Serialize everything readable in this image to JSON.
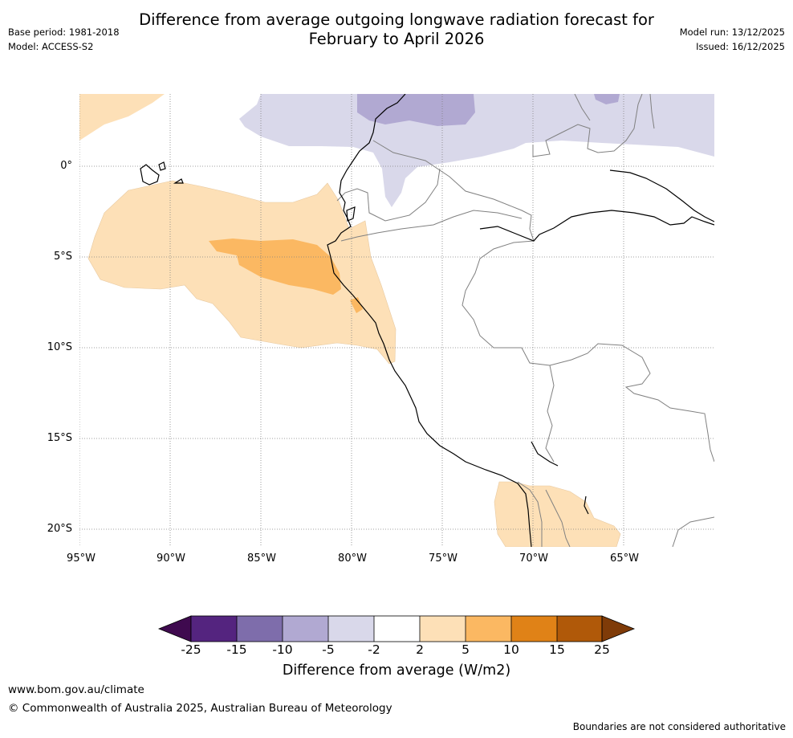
{
  "title": {
    "line1": "Difference from average outgoing longwave radiation forecast for",
    "line2": "February to April 2026"
  },
  "meta": {
    "base_period": "Base period: 1981-2018",
    "model": "Model: ACCESS-S2",
    "model_run": "Model run: 13/12/2025",
    "issued": "Issued: 16/12/2025"
  },
  "map": {
    "lat_labels": [
      "0°",
      "5°S",
      "10°S",
      "15°S",
      "20°S"
    ],
    "lon_labels": [
      "95°W",
      "90°W",
      "85°W",
      "80°W",
      "75°W",
      "70°W",
      "65°W"
    ]
  },
  "colorbar": {
    "ticks": [
      "-25",
      "-15",
      "-10",
      "-5",
      "-2",
      "2",
      "5",
      "10",
      "15",
      "25"
    ],
    "colors": [
      "#3f0a4f",
      "#54247f",
      "#7e6dab",
      "#b1a9d2",
      "#d9d8ea",
      "#ffffff",
      "#fde0b7",
      "#fbb862",
      "#e08217",
      "#b05909",
      "#7f3b08"
    ],
    "title": "Difference from average (W/m2)"
  },
  "footer": {
    "website": "www.bom.gov.au/climate",
    "copyright": "© Commonwealth of Australia 2025, Australian Bureau of Meteorology",
    "disclaimer": "Boundaries are not considered authoritative"
  }
}
